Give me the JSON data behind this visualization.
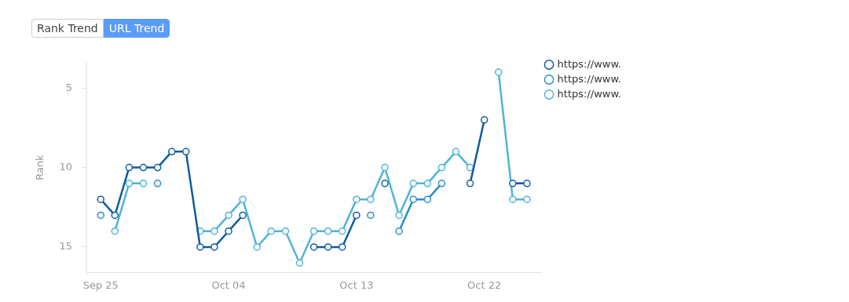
{
  "chart_data": {
    "type": "line",
    "ylabel": "Rank",
    "annotations": [
      "Rank Trend",
      "URL Trend"
    ],
    "x": [
      "--09-25",
      "--09-26",
      "--09-27",
      "--09-28",
      "--09-29",
      "--09-30",
      "--10-01",
      "--10-02",
      "--10-03",
      "--10-04",
      "--10-05",
      "--10-06",
      "--10-07",
      "--10-08",
      "--10-09",
      "--10-10",
      "--10-11",
      "--10-12",
      "--10-13",
      "--10-14",
      "--10-15",
      "--10-16",
      "--10-17",
      "--10-18",
      "--10-19",
      "--10-20",
      "--10-21",
      "--10-22",
      "--10-23",
      "--10-24",
      "--10-25"
    ],
    "series": [
      {
        "name": "https://www.",
        "color": "#0f5c9e",
        "values": [
          12,
          13,
          10,
          10,
          10,
          9,
          9,
          15,
          15,
          14,
          13,
          null,
          null,
          null,
          null,
          15,
          15,
          15,
          13,
          null,
          11,
          null,
          null,
          null,
          null,
          null,
          11,
          7,
          null,
          11,
          11
        ]
      },
      {
        "name": "https://www.",
        "color": "#2a8cc6",
        "values": [
          13,
          null,
          null,
          null,
          11,
          null,
          null,
          null,
          null,
          null,
          null,
          null,
          null,
          null,
          null,
          null,
          null,
          null,
          null,
          13,
          null,
          14,
          12,
          12,
          11,
          null,
          null,
          null,
          null,
          null,
          null
        ]
      },
      {
        "name": "https://www.",
        "color": "#4fb4d6",
        "values": [
          null,
          14,
          11,
          11,
          null,
          null,
          null,
          14,
          14,
          13,
          12,
          15,
          14,
          14,
          16,
          14,
          14,
          14,
          12,
          12,
          10,
          13,
          11,
          11,
          10,
          9,
          10,
          null,
          4,
          12,
          12
        ]
      }
    ],
    "xlim": [
      "--09-24",
      "--10-26"
    ],
    "xticks": [
      {
        "value": "--09-25",
        "label": "Sep 25"
      },
      {
        "value": "--10-04",
        "label": "Oct 04"
      },
      {
        "value": "--10-13",
        "label": "Oct 13"
      },
      {
        "value": "--10-22",
        "label": "Oct 22"
      }
    ],
    "ylim": [
      16.6,
      3.4
    ],
    "yticks": [
      5,
      10,
      15
    ],
    "grid": false,
    "legend": "top right",
    "marker": "circle",
    "line_style": "solid"
  }
}
